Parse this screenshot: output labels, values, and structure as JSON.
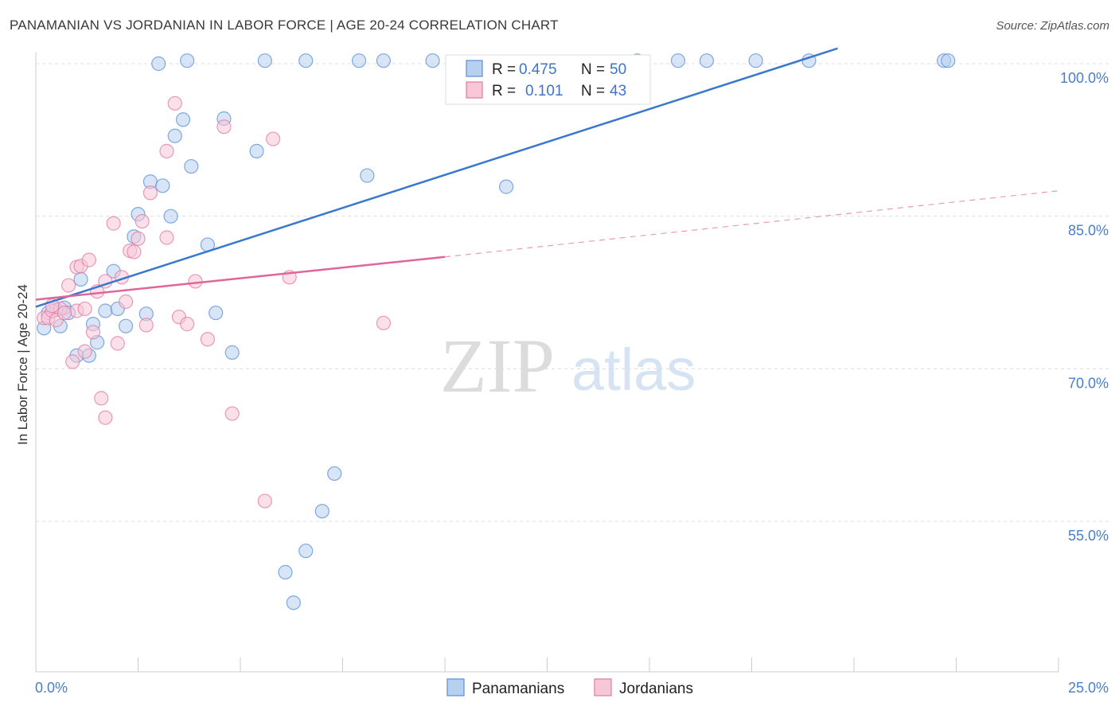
{
  "title": "PANAMANIAN VS JORDANIAN IN LABOR FORCE | AGE 20-24 CORRELATION CHART",
  "source": "Source: ZipAtlas.com",
  "watermark": {
    "part1": "ZIP",
    "part2": "atlas"
  },
  "chart_data": {
    "type": "scatter",
    "xlabel": "",
    "ylabel": "In Labor Force | Age 20-24",
    "xlim": [
      0,
      25
    ],
    "ylim": [
      40,
      101.5
    ],
    "x_tick_labels": {
      "min": "0.0%",
      "max": "25.0%"
    },
    "y_ticks": [
      {
        "value": 100,
        "label": "100.0%"
      },
      {
        "value": 85,
        "label": "85.0%"
      },
      {
        "value": 70,
        "label": "70.0%"
      },
      {
        "value": 55,
        "label": "55.0%"
      }
    ],
    "grid": "horizontal dashed",
    "legend_position": "top-center",
    "series": [
      {
        "name": "Panamanians",
        "color": "#5b8fd6",
        "fill": "#b8d0f0",
        "R": "0.475",
        "N": "50",
        "trend": {
          "x": [
            0,
            19.6
          ],
          "y": [
            76.1,
            101.5
          ],
          "dashed_extension": false
        },
        "points": [
          [
            0.2,
            74.0
          ],
          [
            0.3,
            75.5
          ],
          [
            0.5,
            75.8
          ],
          [
            0.6,
            74.2
          ],
          [
            0.7,
            76.0
          ],
          [
            0.8,
            75.5
          ],
          [
            1.0,
            71.3
          ],
          [
            1.1,
            78.8
          ],
          [
            1.3,
            71.3
          ],
          [
            1.4,
            74.4
          ],
          [
            1.5,
            72.6
          ],
          [
            1.7,
            75.7
          ],
          [
            1.9,
            79.6
          ],
          [
            2.0,
            75.9
          ],
          [
            2.2,
            74.2
          ],
          [
            2.4,
            83.0
          ],
          [
            2.5,
            85.2
          ],
          [
            2.7,
            75.4
          ],
          [
            2.8,
            88.4
          ],
          [
            3.0,
            100.0
          ],
          [
            3.1,
            88.0
          ],
          [
            3.3,
            85.0
          ],
          [
            3.4,
            92.9
          ],
          [
            3.6,
            94.5
          ],
          [
            3.7,
            100.3
          ],
          [
            3.8,
            89.9
          ],
          [
            4.2,
            82.2
          ],
          [
            4.4,
            75.5
          ],
          [
            4.6,
            94.6
          ],
          [
            4.8,
            71.6
          ],
          [
            5.4,
            91.4
          ],
          [
            5.6,
            100.3
          ],
          [
            6.1,
            50.0
          ],
          [
            6.3,
            47.0
          ],
          [
            6.6,
            52.1
          ],
          [
            6.6,
            100.3
          ],
          [
            7.0,
            56.0
          ],
          [
            7.3,
            59.7
          ],
          [
            7.9,
            100.3
          ],
          [
            8.1,
            89.0
          ],
          [
            8.5,
            100.3
          ],
          [
            9.7,
            100.3
          ],
          [
            11.5,
            87.9
          ],
          [
            14.7,
            100.3
          ],
          [
            15.7,
            100.3
          ],
          [
            16.4,
            100.3
          ],
          [
            17.6,
            100.3
          ],
          [
            18.9,
            100.3
          ],
          [
            22.2,
            100.3
          ],
          [
            22.3,
            100.3
          ]
        ]
      },
      {
        "name": "Jordanians",
        "color": "#e37aa3",
        "fill": "#f7c6d7",
        "R": "0.101",
        "N": "43",
        "trend": {
          "x": [
            0,
            10.0
          ],
          "y": [
            76.8,
            81.0
          ],
          "dashed_to": [
            25.0,
            87.5
          ]
        },
        "points": [
          [
            0.2,
            75.0
          ],
          [
            0.3,
            75.0
          ],
          [
            0.4,
            75.7
          ],
          [
            0.6,
            75.9
          ],
          [
            0.8,
            78.2
          ],
          [
            0.9,
            70.7
          ],
          [
            1.0,
            75.7
          ],
          [
            1.0,
            80.0
          ],
          [
            1.1,
            80.1
          ],
          [
            1.2,
            71.7
          ],
          [
            1.3,
            80.7
          ],
          [
            1.4,
            73.6
          ],
          [
            1.5,
            77.6
          ],
          [
            1.6,
            67.1
          ],
          [
            1.7,
            78.6
          ],
          [
            1.7,
            65.2
          ],
          [
            1.9,
            84.3
          ],
          [
            2.0,
            72.5
          ],
          [
            2.1,
            79.0
          ],
          [
            2.2,
            76.6
          ],
          [
            2.3,
            81.6
          ],
          [
            2.4,
            81.5
          ],
          [
            2.5,
            82.8
          ],
          [
            2.6,
            84.5
          ],
          [
            2.7,
            74.3
          ],
          [
            2.8,
            87.3
          ],
          [
            3.2,
            91.4
          ],
          [
            3.2,
            82.9
          ],
          [
            3.4,
            96.1
          ],
          [
            3.5,
            75.1
          ],
          [
            3.7,
            74.4
          ],
          [
            3.9,
            78.6
          ],
          [
            4.2,
            72.9
          ],
          [
            4.6,
            93.8
          ],
          [
            4.8,
            65.6
          ],
          [
            5.6,
            57.0
          ],
          [
            5.8,
            92.6
          ],
          [
            6.2,
            79.0
          ],
          [
            8.5,
            74.5
          ],
          [
            0.5,
            74.8
          ],
          [
            0.7,
            75.5
          ],
          [
            1.2,
            75.9
          ],
          [
            0.4,
            76.2
          ]
        ]
      }
    ]
  }
}
